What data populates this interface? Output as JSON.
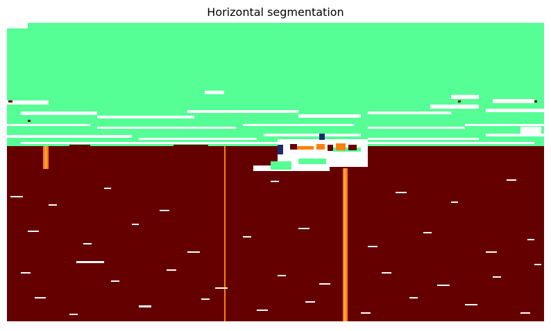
{
  "figure": {
    "title": "Horizontal segmentation"
  },
  "colors": {
    "sky_segment": "#55ff95",
    "water_segment": "#650000",
    "boundary": "#ffffff",
    "highlight_orange": "#ff7f0e",
    "dark_blue": "#1f2a6b",
    "background": "#ffffff"
  },
  "image": {
    "description_icon": "segmentation-map-icon"
  }
}
